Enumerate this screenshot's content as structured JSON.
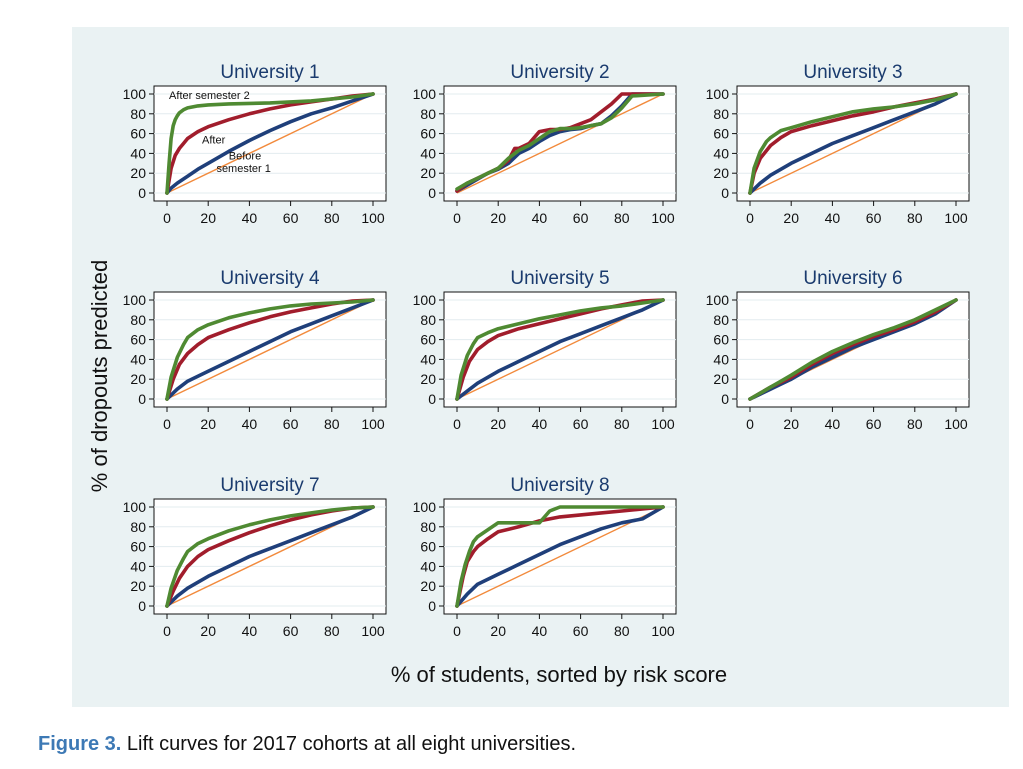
{
  "figure": {
    "label": "Figure 3.",
    "caption": "Lift curves for 2017 cohorts at all eight universities."
  },
  "chart_data": {
    "type": "line",
    "ylabel": "% of dropouts predicted",
    "xlabel": "% of students, sorted by risk score",
    "xlim": [
      0,
      100
    ],
    "ylim": [
      0,
      100
    ],
    "x_ticks": [
      0,
      20,
      40,
      60,
      80,
      100
    ],
    "y_ticks": [
      0,
      20,
      40,
      60,
      80,
      100
    ],
    "colors": {
      "before_semester_1": "#1f3f7a",
      "after_semester_1": "#a11d2c",
      "after_semester_2": "#4f8a32",
      "baseline": "#f28a3c"
    },
    "annotations": {
      "after_semester_2": "After semester 2",
      "after": "After",
      "before": "Before",
      "semester_1": "semester 1"
    },
    "panels": [
      {
        "title": "University 1",
        "series": [
          {
            "name": "Before semester 1",
            "key": "before_semester_1",
            "x": [
              0,
              2,
              5,
              10,
              15,
              20,
              30,
              40,
              50,
              60,
              70,
              80,
              90,
              100
            ],
            "y": [
              0,
              5,
              10,
              17,
              24,
              30,
              42,
              53,
              63,
              72,
              80,
              86,
              93,
              100
            ]
          },
          {
            "name": "After semester 1",
            "key": "after_semester_1",
            "x": [
              0,
              2,
              4,
              6,
              8,
              10,
              15,
              20,
              30,
              40,
              50,
              60,
              70,
              80,
              90,
              100
            ],
            "y": [
              0,
              25,
              38,
              45,
              50,
              55,
              62,
              67,
              74,
              80,
              85,
              89,
              92,
              95,
              98,
              100
            ]
          },
          {
            "name": "After semester 2",
            "key": "after_semester_2",
            "x": [
              0,
              1,
              2,
              3,
              4,
              5,
              6,
              8,
              10,
              15,
              20,
              30,
              50,
              70,
              90,
              100
            ],
            "y": [
              0,
              30,
              55,
              68,
              74,
              78,
              81,
              84,
              86,
              88,
              89,
              90,
              91,
              93,
              97,
              100
            ]
          }
        ]
      },
      {
        "title": "University 2",
        "series": [
          {
            "name": "Before semester 1",
            "key": "before_semester_1",
            "x": [
              0,
              5,
              10,
              15,
              20,
              25,
              30,
              35,
              40,
              45,
              50,
              55,
              60,
              65,
              70,
              75,
              80,
              85,
              100
            ],
            "y": [
              2,
              8,
              14,
              20,
              24,
              30,
              40,
              45,
              52,
              58,
              62,
              64,
              65,
              68,
              70,
              78,
              88,
              100,
              100
            ]
          },
          {
            "name": "After semester 1",
            "key": "after_semester_1",
            "x": [
              0,
              5,
              10,
              15,
              20,
              25,
              28,
              30,
              35,
              40,
              45,
              50,
              55,
              60,
              65,
              70,
              75,
              80,
              85,
              100
            ],
            "y": [
              2,
              10,
              15,
              20,
              25,
              33,
              45,
              45,
              50,
              62,
              64,
              64,
              66,
              70,
              74,
              82,
              90,
              100,
              100,
              100
            ]
          },
          {
            "name": "After semester 2",
            "key": "after_semester_2",
            "x": [
              0,
              5,
              10,
              15,
              20,
              25,
              30,
              35,
              40,
              45,
              50,
              55,
              60,
              65,
              70,
              75,
              80,
              85,
              100
            ],
            "y": [
              4,
              10,
              15,
              20,
              25,
              35,
              43,
              48,
              55,
              62,
              65,
              65,
              66,
              68,
              70,
              76,
              86,
              98,
              100
            ]
          }
        ]
      },
      {
        "title": "University 3",
        "series": [
          {
            "name": "Before semester 1",
            "key": "before_semester_1",
            "x": [
              0,
              5,
              10,
              20,
              30,
              40,
              50,
              60,
              70,
              80,
              90,
              100
            ],
            "y": [
              0,
              10,
              18,
              30,
              40,
              50,
              58,
              66,
              74,
              82,
              90,
              100
            ]
          },
          {
            "name": "After semester 1",
            "key": "after_semester_1",
            "x": [
              0,
              2,
              5,
              10,
              15,
              20,
              30,
              40,
              50,
              60,
              70,
              80,
              90,
              100
            ],
            "y": [
              0,
              20,
              35,
              48,
              56,
              62,
              68,
              73,
              78,
              82,
              87,
              91,
              95,
              100
            ]
          },
          {
            "name": "After semester 2",
            "key": "after_semester_2",
            "x": [
              0,
              2,
              5,
              8,
              10,
              15,
              20,
              30,
              40,
              50,
              60,
              70,
              80,
              90,
              100
            ],
            "y": [
              0,
              25,
              42,
              52,
              56,
              63,
              66,
              72,
              77,
              82,
              85,
              87,
              90,
              94,
              100
            ]
          }
        ]
      },
      {
        "title": "University 4",
        "series": [
          {
            "name": "Before semester 1",
            "key": "before_semester_1",
            "x": [
              0,
              5,
              10,
              20,
              30,
              40,
              50,
              60,
              70,
              80,
              90,
              100
            ],
            "y": [
              0,
              10,
              18,
              28,
              38,
              48,
              58,
              68,
              76,
              84,
              92,
              100
            ]
          },
          {
            "name": "After semester 1",
            "key": "after_semester_1",
            "x": [
              0,
              3,
              6,
              10,
              15,
              20,
              30,
              40,
              50,
              60,
              70,
              80,
              90,
              100
            ],
            "y": [
              0,
              20,
              35,
              46,
              55,
              62,
              70,
              77,
              83,
              88,
              92,
              96,
              99,
              100
            ]
          },
          {
            "name": "After semester 2",
            "key": "after_semester_2",
            "x": [
              0,
              2,
              5,
              8,
              10,
              15,
              20,
              30,
              40,
              50,
              60,
              70,
              80,
              90,
              100
            ],
            "y": [
              0,
              22,
              42,
              55,
              62,
              70,
              75,
              82,
              87,
              91,
              94,
              96,
              97,
              98,
              100
            ]
          }
        ]
      },
      {
        "title": "University 5",
        "series": [
          {
            "name": "Before semester 1",
            "key": "before_semester_1",
            "x": [
              0,
              5,
              10,
              20,
              30,
              40,
              50,
              60,
              70,
              80,
              90,
              100
            ],
            "y": [
              0,
              8,
              16,
              28,
              38,
              48,
              58,
              66,
              74,
              82,
              90,
              100
            ]
          },
          {
            "name": "After semester 1",
            "key": "after_semester_1",
            "x": [
              0,
              3,
              6,
              10,
              15,
              20,
              30,
              40,
              50,
              60,
              70,
              80,
              90,
              100
            ],
            "y": [
              0,
              22,
              38,
              50,
              58,
              64,
              71,
              76,
              81,
              86,
              91,
              95,
              99,
              100
            ]
          },
          {
            "name": "After semester 2",
            "key": "after_semester_2",
            "x": [
              0,
              2,
              5,
              8,
              10,
              15,
              20,
              30,
              40,
              50,
              60,
              70,
              80,
              90,
              100
            ],
            "y": [
              0,
              24,
              44,
              56,
              62,
              67,
              71,
              76,
              81,
              85,
              89,
              92,
              94,
              97,
              100
            ]
          }
        ]
      },
      {
        "title": "University 6",
        "series": [
          {
            "name": "Before semester 1",
            "key": "before_semester_1",
            "x": [
              0,
              5,
              10,
              15,
              20,
              30,
              40,
              50,
              60,
              70,
              80,
              90,
              100
            ],
            "y": [
              0,
              5,
              10,
              15,
              20,
              32,
              42,
              52,
              60,
              68,
              76,
              86,
              100
            ]
          },
          {
            "name": "After semester 1",
            "key": "after_semester_1",
            "x": [
              0,
              5,
              10,
              15,
              20,
              30,
              40,
              50,
              60,
              70,
              80,
              90,
              100
            ],
            "y": [
              0,
              6,
              12,
              17,
              22,
              35,
              46,
              55,
              63,
              70,
              78,
              88,
              100
            ]
          },
          {
            "name": "After semester 2",
            "key": "after_semester_2",
            "x": [
              0,
              5,
              10,
              15,
              20,
              30,
              40,
              50,
              60,
              70,
              80,
              90,
              100
            ],
            "y": [
              0,
              6,
              12,
              18,
              24,
              37,
              48,
              57,
              65,
              72,
              80,
              90,
              100
            ]
          }
        ]
      },
      {
        "title": "University 7",
        "series": [
          {
            "name": "Before semester 1",
            "key": "before_semester_1",
            "x": [
              0,
              5,
              10,
              20,
              30,
              40,
              50,
              60,
              70,
              80,
              90,
              100
            ],
            "y": [
              0,
              10,
              18,
              30,
              40,
              50,
              58,
              66,
              74,
              82,
              90,
              100
            ]
          },
          {
            "name": "After semester 1",
            "key": "after_semester_1",
            "x": [
              0,
              3,
              6,
              10,
              15,
              20,
              30,
              40,
              50,
              60,
              70,
              80,
              90,
              100
            ],
            "y": [
              0,
              15,
              28,
              40,
              50,
              57,
              66,
              74,
              81,
              87,
              92,
              96,
              99,
              100
            ]
          },
          {
            "name": "After semester 2",
            "key": "after_semester_2",
            "x": [
              0,
              2,
              5,
              8,
              10,
              15,
              20,
              30,
              40,
              50,
              60,
              70,
              80,
              90,
              100
            ],
            "y": [
              0,
              18,
              36,
              48,
              55,
              63,
              68,
              76,
              82,
              87,
              91,
              94,
              97,
              99,
              100
            ]
          }
        ]
      },
      {
        "title": "University 8",
        "series": [
          {
            "name": "Before semester 1",
            "key": "before_semester_1",
            "x": [
              0,
              5,
              10,
              20,
              30,
              40,
              50,
              60,
              70,
              80,
              90,
              100
            ],
            "y": [
              0,
              12,
              22,
              32,
              42,
              52,
              62,
              70,
              78,
              84,
              88,
              100
            ]
          },
          {
            "name": "After semester 1",
            "key": "after_semester_1",
            "x": [
              0,
              3,
              5,
              8,
              10,
              15,
              20,
              30,
              40,
              50,
              60,
              70,
              80,
              90,
              100
            ],
            "y": [
              0,
              30,
              45,
              55,
              60,
              68,
              75,
              80,
              86,
              90,
              92,
              94,
              96,
              98,
              100
            ]
          },
          {
            "name": "After semester 2",
            "key": "after_semester_2",
            "x": [
              0,
              2,
              4,
              6,
              8,
              10,
              15,
              20,
              30,
              40,
              45,
              50,
              60,
              70,
              80,
              90,
              100
            ],
            "y": [
              0,
              25,
              42,
              55,
              65,
              70,
              77,
              84,
              84,
              84,
              96,
              100,
              100,
              100,
              100,
              100,
              100
            ]
          }
        ]
      }
    ]
  }
}
